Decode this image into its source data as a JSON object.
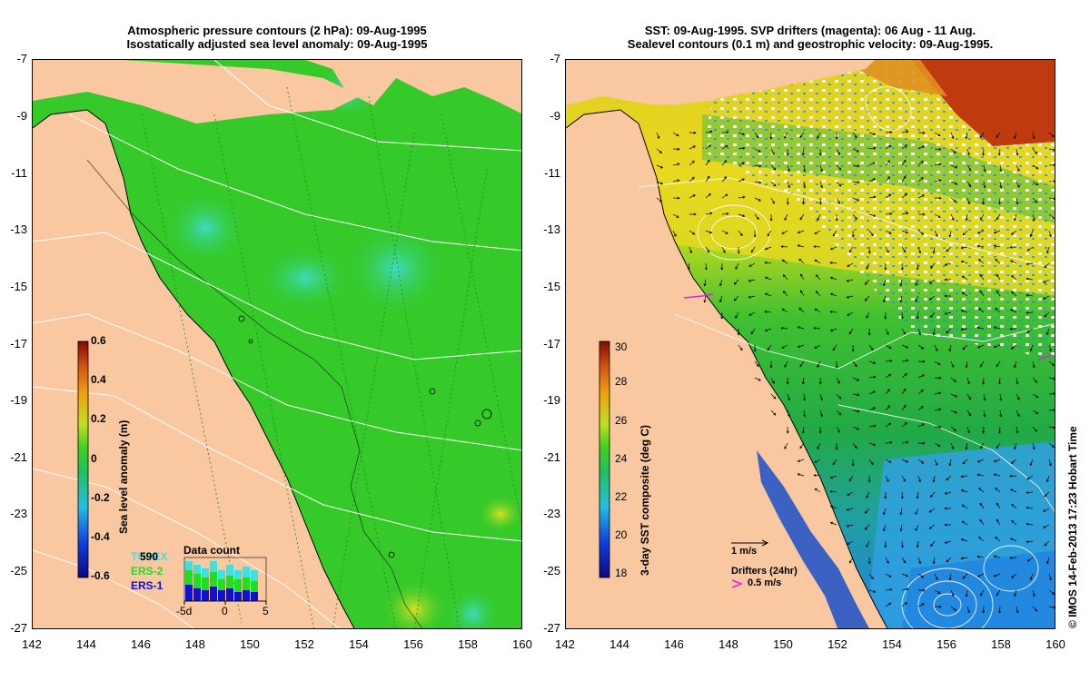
{
  "left_panel": {
    "title_line1": "Atmospheric pressure contours (2 hPa): 09-Aug-1995",
    "title_line2": "Isostatically adjusted sea level anomaly: 09-Aug-1995",
    "colorbar": {
      "label": "Sea level anomaly (m)",
      "ticks": [
        "0.6",
        "0.4",
        "0.2",
        "0",
        "-0.2",
        "-0.4",
        "-0.6"
      ]
    },
    "data_count": {
      "title": "Data count",
      "legend": [
        "TOPEX",
        "ERS-2",
        "ERS-1"
      ],
      "legend_colors": [
        "#40e0e0",
        "#22dd22",
        "#1010d0"
      ],
      "count": "590",
      "axis_labels": [
        "-5d",
        "0",
        "5"
      ]
    }
  },
  "right_panel": {
    "title_line1": "SST: 09-Aug-1995. SVP drifters (magenta): 06 Aug - 11 Aug.",
    "title_line2": "Sealevel contours (0.1 m) and geostrophic velocity: 09-Aug-1995.",
    "colorbar": {
      "label": "3-day SST composite (deg C)",
      "ticks": [
        "30",
        "28",
        "26",
        "24",
        "22",
        "20",
        "18"
      ]
    },
    "velocity_key": "1 m/s",
    "drifter_key_title": "Drifters (24hr)",
    "drifter_key_value": "0.5 m/s",
    "drifter_color": "#e020e0"
  },
  "axes": {
    "lat_ticks": [
      "-7",
      "-9",
      "-11",
      "-13",
      "-15",
      "-17",
      "-19",
      "-21",
      "-23",
      "-25",
      "-27"
    ],
    "lon_ticks": [
      "142",
      "144",
      "146",
      "148",
      "150",
      "152",
      "154",
      "156",
      "158",
      "160"
    ]
  },
  "credit": "© IMOS 14-Feb-2013 17:23 Hobart Time",
  "colors": {
    "land": "#f9c8a0",
    "sea_anomaly": "#33cc22",
    "sst_warm": "#e8d020",
    "sst_hot": "#c83010",
    "sst_cool": "#22aa44",
    "sst_cold": "#2288dd"
  }
}
